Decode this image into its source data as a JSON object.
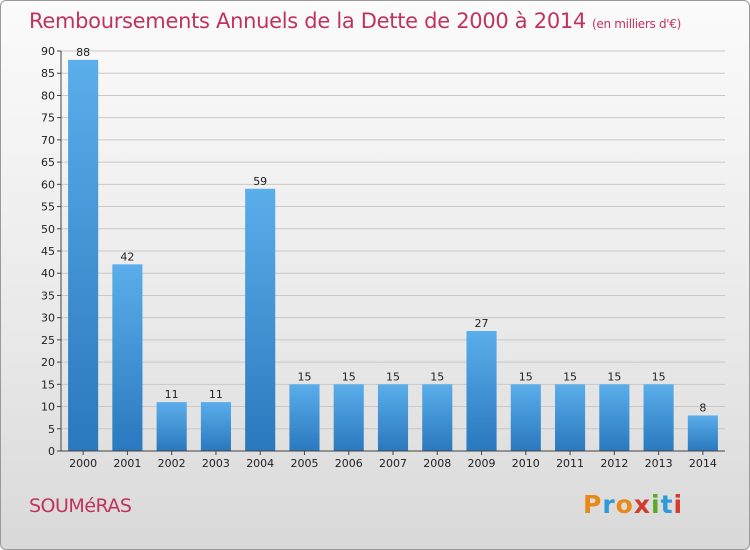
{
  "header": {
    "title": "Remboursements Annuels de la Dette de 2000 à 2014",
    "unit": "(en milliers d'€)"
  },
  "footer": {
    "commune": "SOUMéRAS",
    "logo_text": "Proxiti",
    "logo_colors": [
      "#e8891a",
      "#2d9bd7",
      "#e8891a",
      "#d33b2c",
      "#5aaa2a",
      "#2d9bd7",
      "#d33b2c"
    ]
  },
  "chart_data": {
    "type": "bar",
    "title": "Remboursements Annuels de la Dette de 2000 à 2014",
    "subtitle": "(en milliers d'€)",
    "xlabel": "",
    "ylabel": "",
    "categories": [
      "2000",
      "2001",
      "2002",
      "2003",
      "2004",
      "2005",
      "2006",
      "2007",
      "2008",
      "2009",
      "2010",
      "2011",
      "2012",
      "2013",
      "2014"
    ],
    "values": [
      88,
      42,
      11,
      11,
      59,
      15,
      15,
      15,
      15,
      27,
      15,
      15,
      15,
      15,
      8
    ],
    "ylim": [
      0,
      90
    ],
    "yticks": [
      0,
      5,
      10,
      15,
      20,
      25,
      30,
      35,
      40,
      45,
      50,
      55,
      60,
      65,
      70,
      75,
      80,
      85,
      90
    ],
    "grid": true,
    "bar_color": "#3a8fd6"
  }
}
